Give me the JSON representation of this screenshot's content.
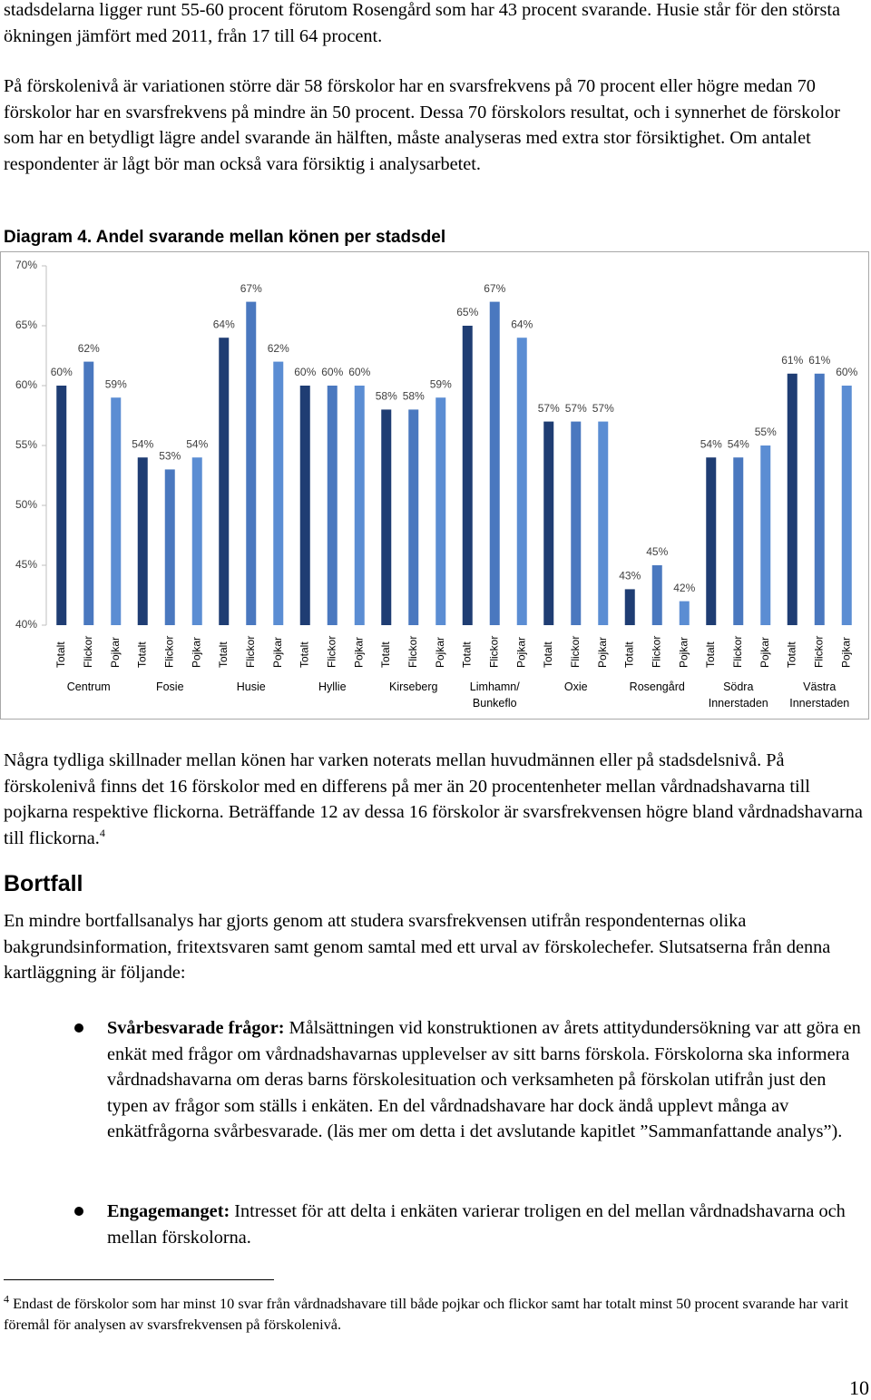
{
  "paragraphs": [
    "stadsdelarna ligger runt 55-60 procent förutom Rosengård som har 43 procent svarande. Husie står för den största ökningen jämfört med 2011, från 17 till 64 procent.",
    "På förskolenivå är variationen större där 58 förskolor har en svarsfrekvens på 70 procent eller högre medan 70 förskolor har en svarsfrekvens på mindre än 50 procent. Dessa 70 förskolors resultat, och i synnerhet de förskolor som har en betydligt lägre andel svarande än hälften, måste analyseras med extra stor försiktighet. Om antalet respondenter är lågt bör man också vara försiktig i analysarbetet."
  ],
  "chart_data": {
    "type": "bar",
    "title": "Diagram 4. Andel svarande mellan könen per stadsdel",
    "categories": [
      "Centrum",
      "Fosie",
      "Husie",
      "Hyllie",
      "Kirseberg",
      "Limhamn/ Bunkeflo",
      "Oxie",
      "Rosengård",
      "Södra Innerstaden",
      "Västra Innerstaden"
    ],
    "series": [
      {
        "name": "Totalt",
        "color": "#1f3d73",
        "values": [
          60,
          54,
          64,
          60,
          58,
          65,
          57,
          43,
          54,
          61
        ],
        "value_labels": [
          "60%",
          "54%",
          "64%",
          "60%",
          "58%",
          "65%",
          "57%",
          "43%",
          "54%",
          "61%"
        ]
      },
      {
        "name": "Flickor",
        "color": "#4a78bf",
        "values": [
          62,
          53,
          67,
          60,
          58,
          67,
          57,
          45,
          54,
          61
        ],
        "value_labels": [
          "62%",
          "53%",
          "67%",
          "60%",
          "58%",
          "67%",
          "57%",
          "45%",
          "54%",
          "61%"
        ]
      },
      {
        "name": "Pojkar",
        "color": "#5b8dd3",
        "values": [
          59,
          54,
          62,
          60,
          59,
          64,
          57,
          42,
          55,
          60
        ],
        "value_labels": [
          "59%",
          "54%",
          "62%",
          "60%",
          "59%",
          "64%",
          "57%",
          "42%",
          "55%",
          "60%"
        ]
      }
    ],
    "ylim": [
      40,
      70
    ],
    "yticks": [
      {
        "value": 40,
        "label": "40%"
      },
      {
        "value": 45,
        "label": "45%"
      },
      {
        "value": 50,
        "label": "50%"
      },
      {
        "value": 55,
        "label": "55%"
      },
      {
        "value": 60,
        "label": "60%"
      },
      {
        "value": 65,
        "label": "65%"
      },
      {
        "value": 70,
        "label": "70%"
      }
    ],
    "grid": false
  },
  "after_chart": {
    "text": "Några tydliga skillnader mellan könen har varken noterats mellan huvudmännen eller på stadsdelsnivå. På förskolenivå finns det 16 förskolor med en differens på mer än 20 procentenheter mellan vårdnadshavarna till pojkarna respektive flickorna. Beträffande 12 av dessa 16 förskolor är svarsfrekvensen högre bland vårdnadshavarna till flickorna.",
    "footnote_ref": "4"
  },
  "heading": "Bortfall",
  "bortfall_text": "En mindre bortfallsanalys har gjorts genom att studera svarsfrekvensen utifrån respondenternas olika bakgrundsinformation, fritextsvaren samt genom samtal med ett urval av förskolechefer. Slutsatserna från denna kartläggning är följande:",
  "bullets": [
    {
      "term": "Svårbesvarade frågor:",
      "text": "Målsättningen vid konstruktionen av årets attitydundersökning var att göra en enkät med frågor om vårdnadshavarnas upplevelser av sitt barns förskola. Förskolorna ska informera vårdnadshavarna om deras barns förskolesituation och verksamheten på förskolan utifrån just den typen av frågor som ställs i enkäten. En del vårdnadshavare har dock ändå upplevt många av enkätfrågorna svårbesvarade. (läs mer om detta i det avslutande kapitlet ”Sammanfattande analys”)."
    },
    {
      "term": "Engagemanget:",
      "text": "Intresset för att delta i enkäten varierar troligen en del mellan vårdnadshavarna och mellan förskolorna."
    }
  ],
  "footnote": {
    "number": "4",
    "text": "Endast de förskolor som har minst 10 svar från vårdnadshavare till både pojkar och flickor samt har totalt minst 50 procent svarande har varit föremål för analysen av svarsfrekvensen på förskolenivå."
  },
  "page_number": "10"
}
